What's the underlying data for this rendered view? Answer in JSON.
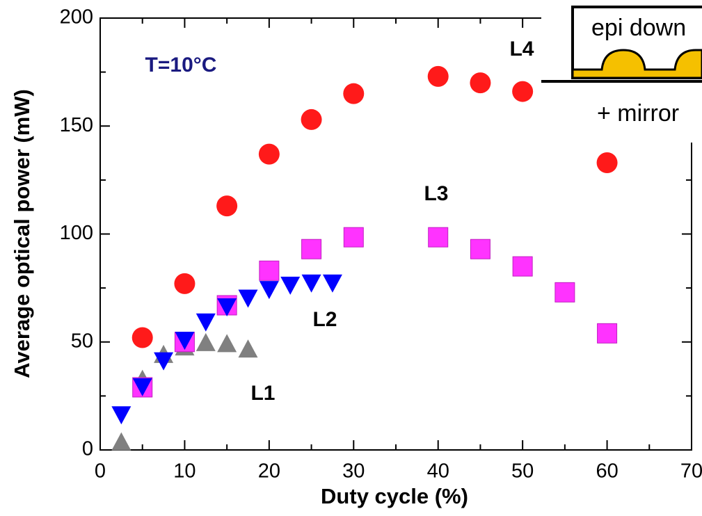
{
  "chart_data": {
    "type": "scatter",
    "x_label": "Duty cycle (%)",
    "y_label": "Average optical power (mW)",
    "xlim": [
      0,
      70
    ],
    "ylim": [
      0,
      200
    ],
    "xticks": [
      0,
      10,
      20,
      30,
      40,
      50,
      60,
      70
    ],
    "yticks": [
      0,
      50,
      100,
      150,
      200
    ],
    "minor_xticks": [
      5,
      15,
      25,
      35,
      45,
      55,
      65
    ],
    "minor_yticks": [
      25,
      75,
      125,
      175
    ],
    "series": [
      {
        "name": "L4",
        "marker": "circle",
        "color": "#ff1a1a",
        "x": [
          5,
          10,
          15,
          20,
          25,
          30,
          40,
          45,
          50,
          60
        ],
        "values": [
          52,
          77,
          113,
          137,
          153,
          165,
          173,
          170,
          166,
          133
        ]
      },
      {
        "name": "L3",
        "marker": "square",
        "color": "#ff33ff",
        "x": [
          5,
          10,
          15,
          20,
          25,
          30,
          40,
          45,
          50,
          55,
          60
        ],
        "values": [
          29,
          50,
          67,
          83,
          93,
          98.5,
          98.5,
          93,
          85,
          73,
          54
        ]
      },
      {
        "name": "L2",
        "marker": "triangle-down",
        "color": "#0000ff",
        "x": [
          2.5,
          5,
          7.5,
          10,
          12.5,
          15,
          17.5,
          20,
          22.5,
          25,
          27.5
        ],
        "values": [
          17,
          30,
          42,
          51.5,
          60,
          67,
          71,
          75,
          77,
          78,
          78
        ]
      },
      {
        "name": "L1",
        "marker": "triangle-up",
        "color": "#808080",
        "x": [
          2.5,
          5,
          7.5,
          10,
          12.5,
          15,
          17.5
        ],
        "values": [
          3,
          32,
          43.5,
          47,
          49,
          48.5,
          46
        ]
      }
    ],
    "annotation": "T=10°C",
    "inset_text": [
      "epi down",
      "+ mirror"
    ]
  }
}
